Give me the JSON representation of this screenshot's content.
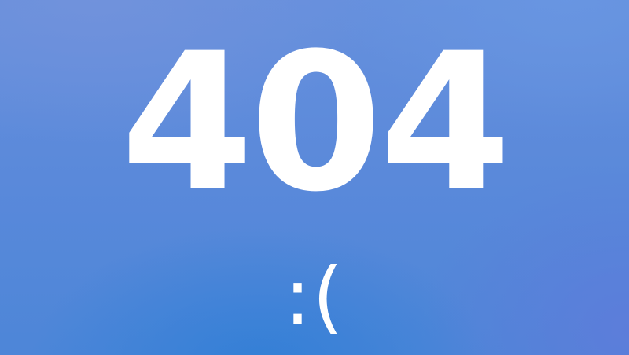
{
  "error": {
    "code": "404",
    "emoticon": ":("
  },
  "colors": {
    "background_top": "#6690dd",
    "background_bottom": "#4d86d8",
    "text": "#ffffff"
  }
}
